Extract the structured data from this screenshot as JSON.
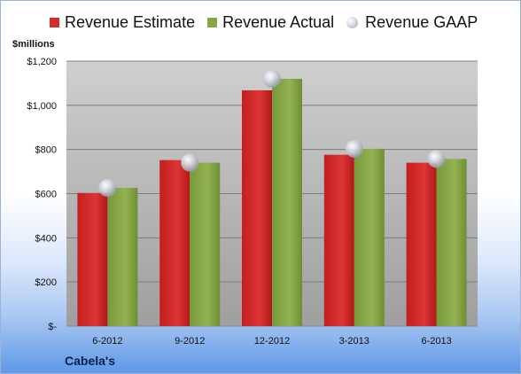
{
  "chart_data": {
    "type": "bar",
    "unit_label": "$millions",
    "company": "Cabela's",
    "categories": [
      "6-2012",
      "9-2012",
      "12-2012",
      "3-2013",
      "6-2013"
    ],
    "series": [
      {
        "name": "Revenue Estimate",
        "type": "bar",
        "color": "#d42a2a",
        "values": [
          603,
          752,
          1068,
          776,
          740
        ]
      },
      {
        "name": "Revenue Actual",
        "type": "bar",
        "color": "#86a844",
        "values": [
          626,
          740,
          1120,
          803,
          757
        ]
      },
      {
        "name": "Revenue GAAP",
        "type": "marker",
        "color": "#bfc4ce",
        "values": [
          626,
          740,
          1120,
          803,
          757
        ]
      }
    ],
    "ylim": [
      0,
      1200
    ],
    "yticks": [
      {
        "value": 0,
        "label": "$-"
      },
      {
        "value": 200,
        "label": "$200"
      },
      {
        "value": 400,
        "label": "$400"
      },
      {
        "value": 600,
        "label": "$600"
      },
      {
        "value": 800,
        "label": "$800"
      },
      {
        "value": 1000,
        "label": "$1,000"
      },
      {
        "value": 1200,
        "label": "$1,200"
      }
    ],
    "grid": true,
    "legend_position": "top"
  }
}
